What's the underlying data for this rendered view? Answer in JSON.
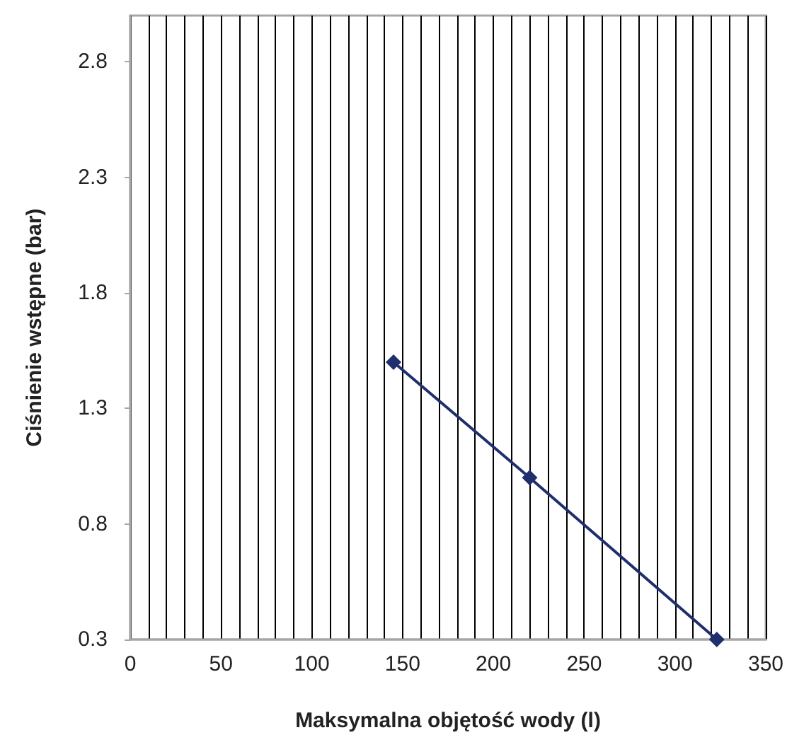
{
  "chart_data": {
    "type": "line",
    "xlabel": "Maksymalna objętość wody (l)",
    "ylabel": "Ciśnienie wstępne (bar)",
    "x": [
      145,
      220,
      323
    ],
    "series": [
      {
        "color": "#1f2f6e",
        "values": [
          1.5,
          1.0,
          0.3
        ]
      }
    ],
    "xlim": [
      0,
      350
    ],
    "xticks": [
      0,
      {
        "value": 10,
        "label": null
      },
      {
        "value": 20,
        "label": null
      },
      {
        "value": 30,
        "label": null
      },
      {
        "value": 40,
        "label": null
      },
      50,
      {
        "value": 60,
        "label": null
      },
      {
        "value": 70,
        "label": null
      },
      {
        "value": 80,
        "label": null
      },
      {
        "value": 90,
        "label": null
      },
      100,
      {
        "value": 110,
        "label": null
      },
      {
        "value": 120,
        "label": null
      },
      {
        "value": 130,
        "label": null
      },
      {
        "value": 140,
        "label": null
      },
      150,
      {
        "value": 160,
        "label": null
      },
      {
        "value": 170,
        "label": null
      },
      {
        "value": 180,
        "label": null
      },
      {
        "value": 190,
        "label": null
      },
      200,
      {
        "value": 210,
        "label": null
      },
      {
        "value": 220,
        "label": null
      },
      {
        "value": 230,
        "label": null
      },
      {
        "value": 240,
        "label": null
      },
      250,
      {
        "value": 260,
        "label": null
      },
      {
        "value": 270,
        "label": null
      },
      {
        "value": 280,
        "label": null
      },
      {
        "value": 290,
        "label": null
      },
      300,
      {
        "value": 310,
        "label": null
      },
      {
        "value": 320,
        "label": null
      },
      {
        "value": 330,
        "label": null
      },
      {
        "value": 340,
        "label": null
      },
      350
    ],
    "ylim": [
      0.3,
      3.0
    ],
    "yticks": [
      0.3,
      0.8,
      1.3,
      1.8,
      2.3,
      2.8
    ],
    "grid": "x",
    "marker": "diamond",
    "line_style": "solid"
  }
}
